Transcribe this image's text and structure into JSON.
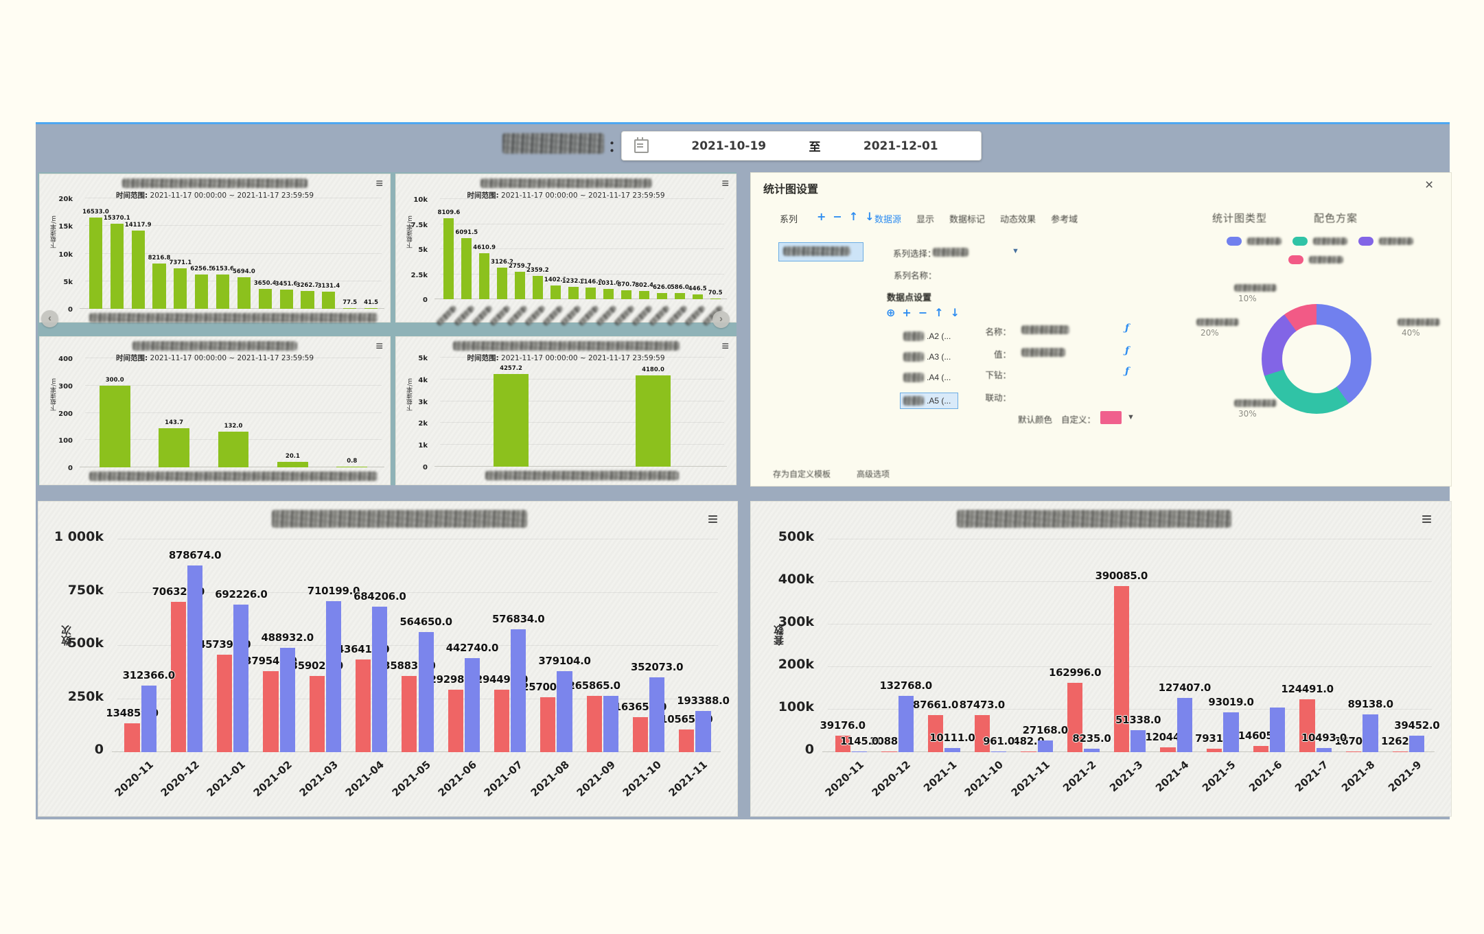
{
  "header": {
    "colon": "：",
    "date_range": {
      "start": "2021-10-19",
      "separator": "至",
      "end": "2021-12-01"
    }
  },
  "carousel": {
    "prev": "‹",
    "next": "›"
  },
  "menu_icon": "≡",
  "small_chart_common": {
    "subtitle_label": "时间范围:",
    "subtitle_value": "2021-11-17 00:00:00 ~ 2021-11-17 23:59:59"
  },
  "settings_panel": {
    "title": "统计图设置",
    "close_icon": "×",
    "series_label": "系列",
    "toolbar_icons": [
      "+",
      "−",
      "↑",
      "↓"
    ],
    "tabs": [
      {
        "label": "数据源",
        "active": true
      },
      {
        "label": "显示",
        "active": false
      },
      {
        "label": "数据标记",
        "active": false
      },
      {
        "label": "动态效果",
        "active": false
      },
      {
        "label": "参考域",
        "active": false
      }
    ],
    "series_select_label": "系列选择：",
    "series_select_arrow": "▼",
    "series_name_label": "系列名称：",
    "datapoint_section": "数据点设置",
    "datapoint_icons": [
      "⊕",
      "+",
      "−",
      "↑",
      "↓"
    ],
    "datapoints": [
      {
        "label": ".A2 (...",
        "selected": false
      },
      {
        "label": ".A3 (...",
        "selected": false
      },
      {
        "label": ".A4 (...",
        "selected": false
      },
      {
        "label": ".A5 (...",
        "selected": true
      }
    ],
    "fields": {
      "name": "名称：",
      "value": "值：",
      "drill": "下钻：",
      "link": "联动："
    },
    "fx_icon": "ƒ",
    "default_color_label": "默认颜色",
    "custom_label": "自定义：",
    "default_color": "#f0608d",
    "footer_links": [
      "存为自定义模板",
      "高级选项"
    ],
    "right_headers": [
      "统计图类型",
      "配色方案"
    ],
    "legend_colors": [
      "#7180ee",
      "#30c3a6",
      "#8265e6",
      "#f25a86"
    ]
  },
  "chart_data": [
    {
      "id": "s1",
      "type": "bar",
      "title_redacted": true,
      "ylabel": "下载速率/m",
      "ymax": 20000,
      "yticks": [
        "0",
        "5k",
        "10k",
        "15k",
        "20k"
      ],
      "color": "#8cc11d",
      "bar_ratio": 0.62,
      "xmode": "strip",
      "strip_ratio": 0.97,
      "values": [
        16533.0,
        15370.1,
        14117.9,
        8216.8,
        7371.1,
        6256.5,
        6153.6,
        5694.0,
        3650.4,
        3451.6,
        3262.7,
        3131.4,
        77.5,
        41.5
      ],
      "labels": [
        "16533.0",
        "15370.1",
        "14117.9",
        "8216.8",
        "7371.1",
        "6256.5",
        "6153.6",
        "5694.0",
        "3650.4",
        "3451.6",
        "3262.7",
        "3131.4",
        "77.5",
        "41.5"
      ]
    },
    {
      "id": "s2",
      "type": "bar",
      "title_redacted": true,
      "ylabel": "下载速率/m",
      "ymax": 10000,
      "yticks": [
        "0",
        "2.5k",
        "5k",
        "7.5k",
        "10k"
      ],
      "color": "#8cc11d",
      "bar_ratio": 0.58,
      "xmode": "scrib-rot",
      "values": [
        8109.6,
        6091.5,
        4610.9,
        3126.2,
        2759.7,
        2359.2,
        1402.1,
        1232.2,
        1146.0,
        1031.0,
        870.7,
        802.4,
        626.0,
        586.0,
        446.5,
        70.5
      ],
      "labels": [
        "8109.6",
        "6091.5",
        "4610.9",
        "3126.2",
        "2759.7",
        "2359.2",
        "1402.1",
        "1232.2",
        "1146.0",
        "1031.0",
        "870.7",
        "802.4",
        "626.0",
        "586.0",
        "446.5",
        "70.5"
      ]
    },
    {
      "id": "s3",
      "type": "bar",
      "title_redacted": true,
      "ylabel": "下载速率/m",
      "ymax": 400,
      "yticks": [
        "0",
        "100",
        "200",
        "300",
        "400"
      ],
      "color": "#8cc11d",
      "bar_ratio": 0.52,
      "xmode": "strip",
      "strip_ratio": 0.97,
      "values": [
        300.0,
        143.7,
        132.0,
        20.1,
        0.8
      ],
      "labels": [
        "300.0",
        "143.7",
        "132.0",
        "20.1",
        "0.8"
      ]
    },
    {
      "id": "s4",
      "type": "bar",
      "title_redacted": true,
      "ylabel": "下载速率/m",
      "ymax": 5000,
      "yticks": [
        "0",
        "1k",
        "2k",
        "3k",
        "4k",
        "5k"
      ],
      "color": "#8cc11d",
      "bar_ratio": 0.25,
      "xmode": "strip",
      "strip_ratio": 0.68,
      "values": [
        4257.2,
        4180.0
      ],
      "labels": [
        "4257.2",
        "4180.0"
      ]
    },
    {
      "id": "b1",
      "type": "bar",
      "big": true,
      "title_redacted": true,
      "ylabel": "数次",
      "ymax": 1000000,
      "yticks": [
        "0",
        "250k",
        "500k",
        "750k",
        "1 000k"
      ],
      "categories": [
        "2020-11",
        "2020-12",
        "2021-01",
        "2021-02",
        "2021-03",
        "2021-04",
        "2021-05",
        "2021-06",
        "2021-07",
        "2021-08",
        "2021-09",
        "2021-10",
        "2021-11"
      ],
      "series": [
        {
          "color": "#ef6565",
          "values": [
            134859,
            706329,
            457390,
            379546,
            359025,
            436410,
            358835,
            292982,
            294491,
            257006,
            265865,
            163659,
            105656
          ],
          "labels": [
            "134859.0",
            "706329.0",
            "457390.0",
            "379546.0",
            "359025.0",
            "436410.0",
            "358835.0",
            "292982.0",
            "294491.0",
            "257006.0",
            "265865.0",
            "163659.0",
            "105656.0"
          ]
        },
        {
          "color": "#7b85ec",
          "values": [
            312366,
            878674,
            692226,
            488932,
            710199,
            684206,
            564650,
            442740,
            576834,
            379104,
            265865,
            352073,
            193388
          ],
          "labels": [
            "312366.0",
            "878674.0",
            "692226.0",
            "488932.0",
            "710199.0",
            "684206.0",
            "564650.0",
            "442740.0",
            "576834.0",
            "379104.0",
            null,
            "352073.0",
            "193388.0"
          ]
        }
      ]
    },
    {
      "id": "b2",
      "type": "bar",
      "big": true,
      "title_redacted": true,
      "ylabel": "套数",
      "ymax": 500000,
      "yticks": [
        "0",
        "100k",
        "200k",
        "300k",
        "400k",
        "500k"
      ],
      "categories": [
        "2020-11",
        "2020-12",
        "2021-1",
        "2021-10",
        "2021-11",
        "2021-2",
        "2021-3",
        "2021-4",
        "2021-5",
        "2021-6",
        "2021-7",
        "2021-8",
        "2021-9"
      ],
      "series": [
        {
          "color": "#ef6565",
          "values": [
            39176,
            2088,
            87661,
            87473,
            482,
            162996,
            390085,
            12044,
            7931,
            14605,
            124491,
            1670,
            1262
          ],
          "labels": [
            "39176.0",
            "2088.0",
            "87661.0",
            "87473.0",
            "482.0",
            "162996.0",
            "390085.0",
            "12044.0",
            "7931.0",
            "14605.0",
            "124491.0",
            "1670.0",
            "1262.0"
          ]
        },
        {
          "color": "#7b85ec",
          "values": [
            1145,
            132768,
            10111,
            961,
            27168,
            8235,
            51338,
            127407,
            93019,
            105000,
            10493,
            89138,
            39452
          ],
          "labels": [
            "1145.0",
            "132768.0",
            "10111.0",
            "961.0",
            "27168.0",
            "8235.0",
            "51338.0",
            "127407.0",
            "93019.0",
            null,
            "10493.0",
            "89138.0",
            "39452.0"
          ]
        }
      ]
    },
    {
      "id": "donut",
      "type": "donut",
      "slices": [
        {
          "pct": 40,
          "color": "#7180ee",
          "label": "40%",
          "pos": "right"
        },
        {
          "pct": 30,
          "color": "#30c3a6",
          "label": "30%",
          "pos": "bottom"
        },
        {
          "pct": 20,
          "color": "#8265e6",
          "label": "20%",
          "pos": "left"
        },
        {
          "pct": 10,
          "color": "#f25a86",
          "label": "10%",
          "pos": "top"
        }
      ]
    }
  ]
}
